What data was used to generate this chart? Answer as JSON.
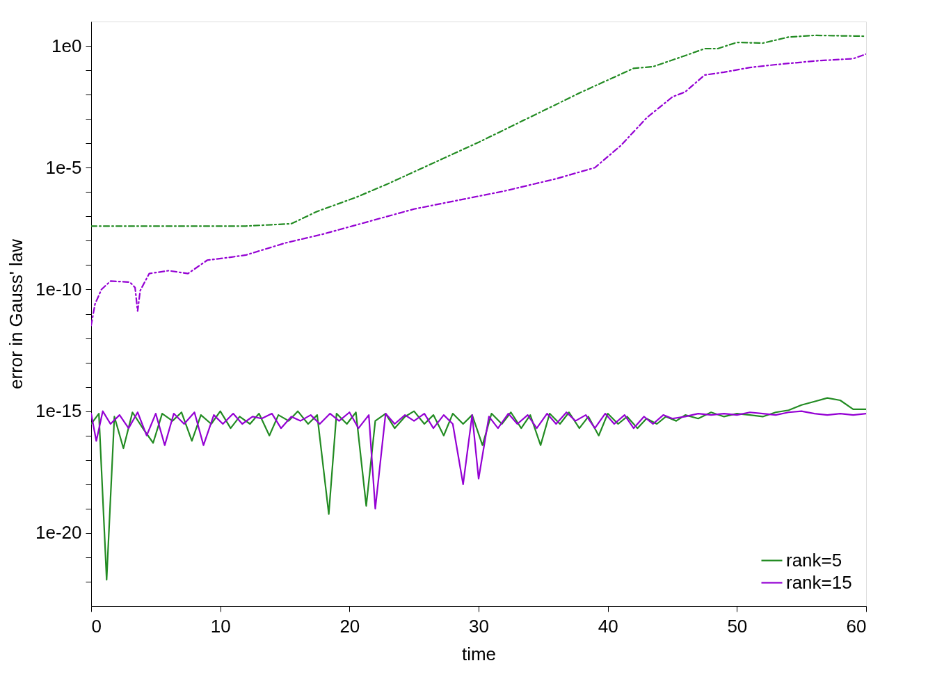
{
  "chart_data": {
    "type": "line",
    "xlabel": "time",
    "ylabel": "error in Gauss' law",
    "log": "y",
    "xlim": [
      0,
      60
    ],
    "xticks": [
      0,
      10,
      20,
      30,
      40,
      50,
      60
    ],
    "ylim": [
      1e-23,
      10
    ],
    "yticks": [
      {
        "value": 1,
        "label": "1e0"
      },
      {
        "value": 0.1,
        "label": null
      },
      {
        "value": 0.01,
        "label": null
      },
      {
        "value": 0.001,
        "label": null
      },
      {
        "value": 0.0001,
        "label": null
      },
      {
        "value": 1e-05,
        "label": "1e-5"
      },
      {
        "value": 1e-06,
        "label": null
      },
      {
        "value": 1e-07,
        "label": null
      },
      {
        "value": 1e-08,
        "label": null
      },
      {
        "value": 1e-09,
        "label": null
      },
      {
        "value": 1e-10,
        "label": "1e-10"
      },
      {
        "value": 1e-11,
        "label": null
      },
      {
        "value": 1e-12,
        "label": null
      },
      {
        "value": 1e-13,
        "label": null
      },
      {
        "value": 1e-14,
        "label": null
      },
      {
        "value": 1e-15,
        "label": "1e-15"
      },
      {
        "value": 1e-16,
        "label": null
      },
      {
        "value": 1e-17,
        "label": null
      },
      {
        "value": 1e-18,
        "label": null
      },
      {
        "value": 1e-19,
        "label": null
      },
      {
        "value": 1e-20,
        "label": "1e-20"
      },
      {
        "value": 1e-21,
        "label": null
      },
      {
        "value": 1e-22,
        "label": null
      }
    ],
    "grid": false,
    "legend": "bottom right",
    "marker": "none",
    "series": [
      {
        "color": "#228b22",
        "line_style": "dashed",
        "x": [
          0,
          12,
          15.5,
          17.5,
          20.5,
          23,
          30,
          38,
          42,
          43.5,
          46,
          47.5,
          48.5,
          50,
          52,
          54,
          56,
          60
        ],
        "values": [
          4e-08,
          4e-08,
          5e-08,
          1.6e-07,
          6e-07,
          2.2e-06,
          0.00011,
          0.013,
          0.12,
          0.14,
          0.4,
          0.77,
          0.77,
          1.39,
          1.3,
          2.3,
          2.7,
          2.5
        ]
      },
      {
        "color": "#9400d3",
        "line_style": "dashed",
        "x": [
          0,
          0.3,
          0.8,
          1.5,
          3,
          3.4,
          3.6,
          3.8,
          4.5,
          6,
          7.5,
          9,
          10.5,
          12,
          15,
          18,
          25,
          32,
          36,
          39,
          41,
          43,
          45,
          46,
          47.5,
          49,
          51,
          53,
          56,
          59,
          60
        ],
        "values": [
          3.3e-12,
          2.5e-11,
          1e-10,
          2.2e-10,
          2e-10,
          1.2e-10,
          1.3e-11,
          9e-11,
          4.5e-10,
          5.9e-10,
          4.5e-10,
          1.6e-09,
          2e-09,
          2.6e-09,
          8e-09,
          1.9e-08,
          2e-07,
          1.1e-06,
          3.5e-06,
          1e-05,
          8e-05,
          0.0011,
          0.008,
          0.013,
          0.064,
          0.083,
          0.13,
          0.17,
          0.24,
          0.3,
          0.46
        ]
      },
      {
        "name": "rank=5",
        "color": "#228b22",
        "line_style": "solid",
        "x": [
          0,
          0.6,
          1.2,
          1.8,
          2.5,
          3.2,
          4,
          4.8,
          5.5,
          6.3,
          7,
          7.8,
          8.5,
          9.3,
          10,
          10.8,
          11.5,
          12.3,
          13,
          13.8,
          14.5,
          15.3,
          16,
          16.8,
          17.5,
          18.4,
          19,
          19.8,
          20.5,
          21.3,
          22,
          22.8,
          23.5,
          24.3,
          25,
          25.8,
          26.5,
          27.3,
          28,
          28.8,
          29.5,
          30.3,
          31,
          31.8,
          32.5,
          33.3,
          34,
          34.8,
          35.5,
          36.3,
          37,
          37.8,
          38.5,
          39.3,
          40,
          40.8,
          41.5,
          42.3,
          43,
          43.8,
          44.5,
          45.3,
          46,
          47,
          48,
          49,
          50,
          51,
          52,
          53,
          54,
          55,
          56,
          57,
          58,
          59,
          60
        ],
        "values": [
          3e-16,
          8e-16,
          1.2e-22,
          6e-16,
          3e-17,
          9e-16,
          2e-16,
          5e-17,
          8e-16,
          4e-16,
          9e-16,
          6e-17,
          7e-16,
          3e-16,
          1e-15,
          2e-16,
          6e-16,
          3e-16,
          8e-16,
          1e-16,
          7e-16,
          4e-16,
          1e-15,
          3e-16,
          7e-16,
          6e-20,
          8e-16,
          3e-16,
          9e-16,
          1.3e-19,
          4e-16,
          8e-16,
          2e-16,
          6e-16,
          1e-15,
          3e-16,
          7e-16,
          1e-16,
          8e-16,
          3e-16,
          7e-16,
          4e-17,
          8e-16,
          3e-16,
          9e-16,
          2e-16,
          7e-16,
          4e-17,
          8e-16,
          3e-16,
          9e-16,
          2e-16,
          6e-16,
          1e-16,
          8e-16,
          3e-16,
          6e-16,
          2e-16,
          5e-16,
          3e-16,
          6e-16,
          4e-16,
          7e-16,
          5e-16,
          9e-16,
          6e-16,
          8e-16,
          7e-16,
          6e-16,
          9e-16,
          1.1e-15,
          1.8e-15,
          2.5e-15,
          3.5e-15,
          2.8e-15,
          1.2e-15,
          1.2e-15
        ]
      },
      {
        "name": "rank=15",
        "color": "#9400d3",
        "line_style": "solid",
        "x": [
          0,
          0.4,
          0.9,
          1.5,
          2.2,
          2.9,
          3.6,
          4.3,
          5,
          5.7,
          6.4,
          7.2,
          8,
          8.7,
          9.5,
          10.2,
          11,
          11.7,
          12.5,
          13.2,
          14,
          14.7,
          15.5,
          16.2,
          17,
          17.7,
          18.5,
          19.2,
          20,
          20.7,
          21.5,
          22,
          22.8,
          23.5,
          24.3,
          25,
          25.8,
          26.5,
          27.3,
          28,
          28.8,
          29.5,
          30,
          30.8,
          31.5,
          32.3,
          33,
          33.8,
          34.5,
          35.3,
          36,
          36.8,
          37.5,
          38.3,
          39,
          39.8,
          40.5,
          41.3,
          42,
          42.8,
          43.5,
          44.3,
          45,
          46,
          47,
          48,
          49,
          50,
          51,
          52,
          53,
          54,
          55,
          56,
          57,
          58,
          59,
          60
        ],
        "values": [
          8e-16,
          6e-17,
          1e-15,
          3e-16,
          7e-16,
          2e-16,
          9e-16,
          1e-16,
          8e-16,
          4e-17,
          8e-16,
          3e-16,
          9e-16,
          4e-17,
          7e-16,
          3e-16,
          8e-16,
          3e-16,
          6e-16,
          5e-16,
          8e-16,
          2e-16,
          6e-16,
          4e-16,
          7e-16,
          3e-16,
          8e-16,
          4e-16,
          9e-16,
          2e-16,
          7e-16,
          1e-19,
          8e-16,
          3e-16,
          7e-16,
          4e-16,
          8e-16,
          2e-16,
          7e-16,
          3e-16,
          1e-18,
          7e-16,
          1.7e-18,
          6e-16,
          2e-16,
          8e-16,
          3e-16,
          7e-16,
          2e-16,
          8e-16,
          3e-16,
          9e-16,
          4e-16,
          7e-16,
          2e-16,
          8e-16,
          3e-16,
          7e-16,
          2e-16,
          6e-16,
          3e-16,
          7e-16,
          5e-16,
          6e-16,
          8e-16,
          7e-16,
          8e-16,
          7e-16,
          9e-16,
          8e-16,
          7e-16,
          9e-16,
          1e-15,
          8e-16,
          7e-16,
          8e-16,
          7e-16,
          8e-16
        ]
      }
    ]
  }
}
